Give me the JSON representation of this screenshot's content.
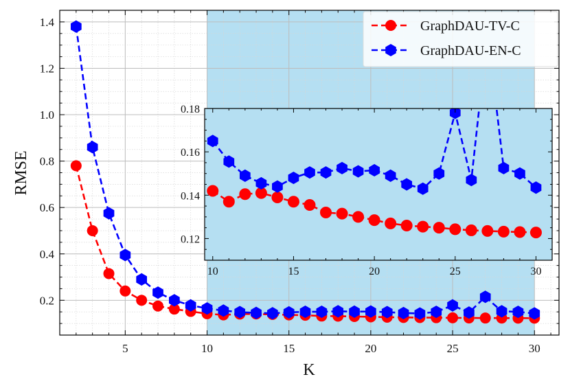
{
  "chart_data": {
    "type": "line",
    "xlabel": "K",
    "ylabel": "RMSE",
    "xlim": [
      1,
      31.5
    ],
    "ylim": [
      0.05,
      1.45
    ],
    "xticks": [
      5,
      10,
      15,
      20,
      25,
      30
    ],
    "yticks": [
      0.2,
      0.4,
      0.6,
      0.8,
      1.0,
      1.2,
      1.4
    ],
    "ytick_labels": [
      "0.2",
      "0.4",
      "0.6",
      "0.8",
      "1.0",
      "1.2",
      "1.4"
    ],
    "grid": true,
    "highlight_region_x": [
      10,
      30
    ],
    "highlight_color": "#b5dff2",
    "legend_position": "top-right",
    "x": [
      2,
      3,
      4,
      5,
      6,
      7,
      8,
      9,
      10,
      11,
      12,
      13,
      14,
      15,
      16,
      17,
      18,
      19,
      20,
      21,
      22,
      23,
      24,
      25,
      26,
      27,
      28,
      29,
      30
    ],
    "series": [
      {
        "name": "GraphDAU-TV-C",
        "color": "#ff0000",
        "marker": "circle",
        "values": [
          0.78,
          0.5,
          0.315,
          0.24,
          0.2,
          0.175,
          0.162,
          0.152,
          0.142,
          0.137,
          0.1405,
          0.141,
          0.139,
          0.137,
          0.1355,
          0.132,
          0.1315,
          0.13,
          0.1285,
          0.127,
          0.126,
          0.1255,
          0.125,
          0.1243,
          0.1238,
          0.1235,
          0.1232,
          0.123,
          0.1228
        ]
      },
      {
        "name": "GraphDAU-EN-C",
        "color": "#0000ff",
        "marker": "hexagon",
        "values": [
          1.38,
          0.86,
          0.575,
          0.395,
          0.29,
          0.233,
          0.2,
          0.178,
          0.165,
          0.1555,
          0.149,
          0.1455,
          0.144,
          0.148,
          0.1505,
          0.1505,
          0.1525,
          0.151,
          0.1515,
          0.149,
          0.145,
          0.143,
          0.15,
          0.178,
          0.147,
          0.215,
          0.1525,
          0.15,
          0.1435
        ]
      }
    ],
    "inset": {
      "xlim": [
        9.5,
        31
      ],
      "ylim": [
        0.11,
        0.18
      ],
      "xticks": [
        10,
        15,
        20,
        25,
        30
      ],
      "yticks": [
        0.12,
        0.14,
        0.16,
        0.18
      ],
      "ytick_labels": [
        "0.12",
        "0.14",
        "0.16",
        "0.18"
      ],
      "x_range": [
        10,
        30
      ]
    }
  }
}
